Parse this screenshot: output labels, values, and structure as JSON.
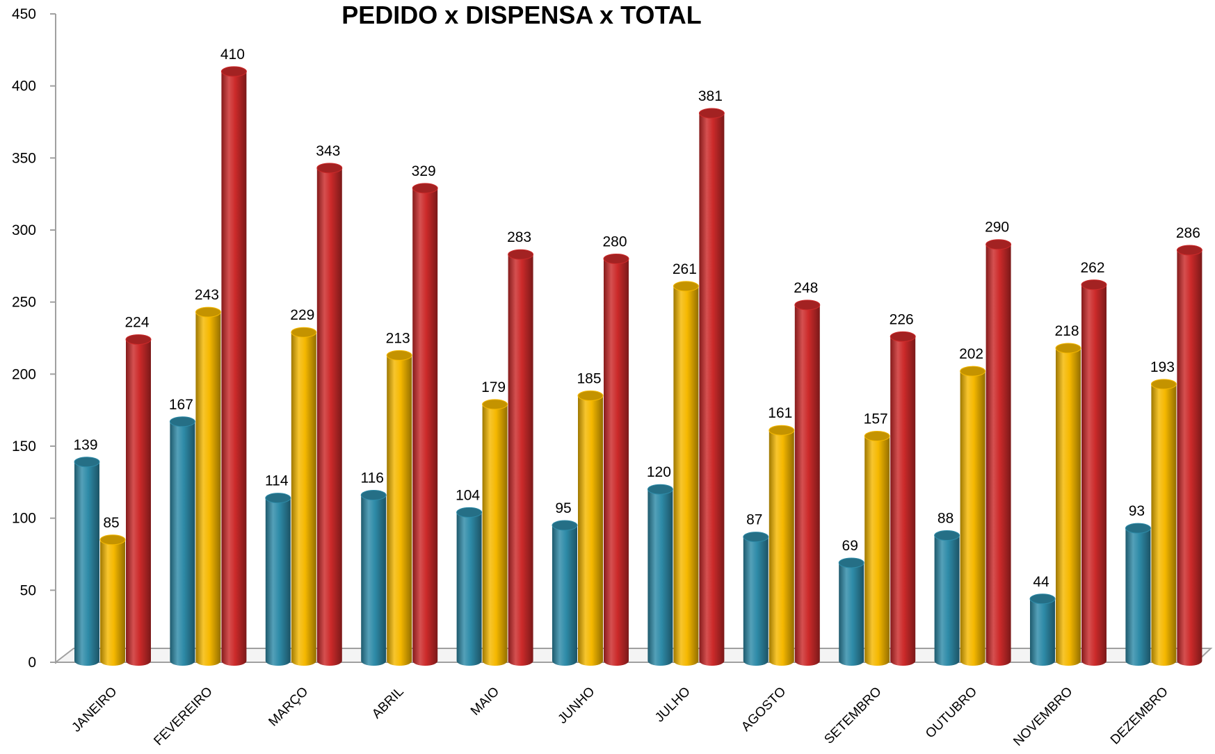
{
  "chart_data": {
    "type": "bar",
    "title": "PEDIDO  x  DISPENSA  x TOTAL",
    "xlabel": "",
    "ylabel": "",
    "ylim": [
      0,
      450
    ],
    "yticks": [
      0,
      50,
      100,
      150,
      200,
      250,
      300,
      350,
      400,
      450
    ],
    "grid": false,
    "legend": "none",
    "categories": [
      "JANEIRO",
      "FEVEREIRO",
      "MARÇO",
      "ABRIL",
      "MAIO",
      "JUNHO",
      "JULHO",
      "AGOSTO",
      "SETEMBRO",
      "OUTUBRO",
      "NOVEMBRO",
      "DEZEMBRO"
    ],
    "series": [
      {
        "color": "#2e8ba8",
        "values": [
          139,
          167,
          114,
          116,
          104,
          95,
          120,
          87,
          69,
          88,
          44,
          93
        ]
      },
      {
        "color": "#f5b800",
        "values": [
          85,
          243,
          229,
          213,
          179,
          185,
          261,
          161,
          157,
          202,
          218,
          193
        ]
      },
      {
        "color": "#cc2a2a",
        "values": [
          224,
          410,
          343,
          329,
          283,
          280,
          381,
          248,
          226,
          290,
          262,
          286
        ]
      }
    ]
  }
}
